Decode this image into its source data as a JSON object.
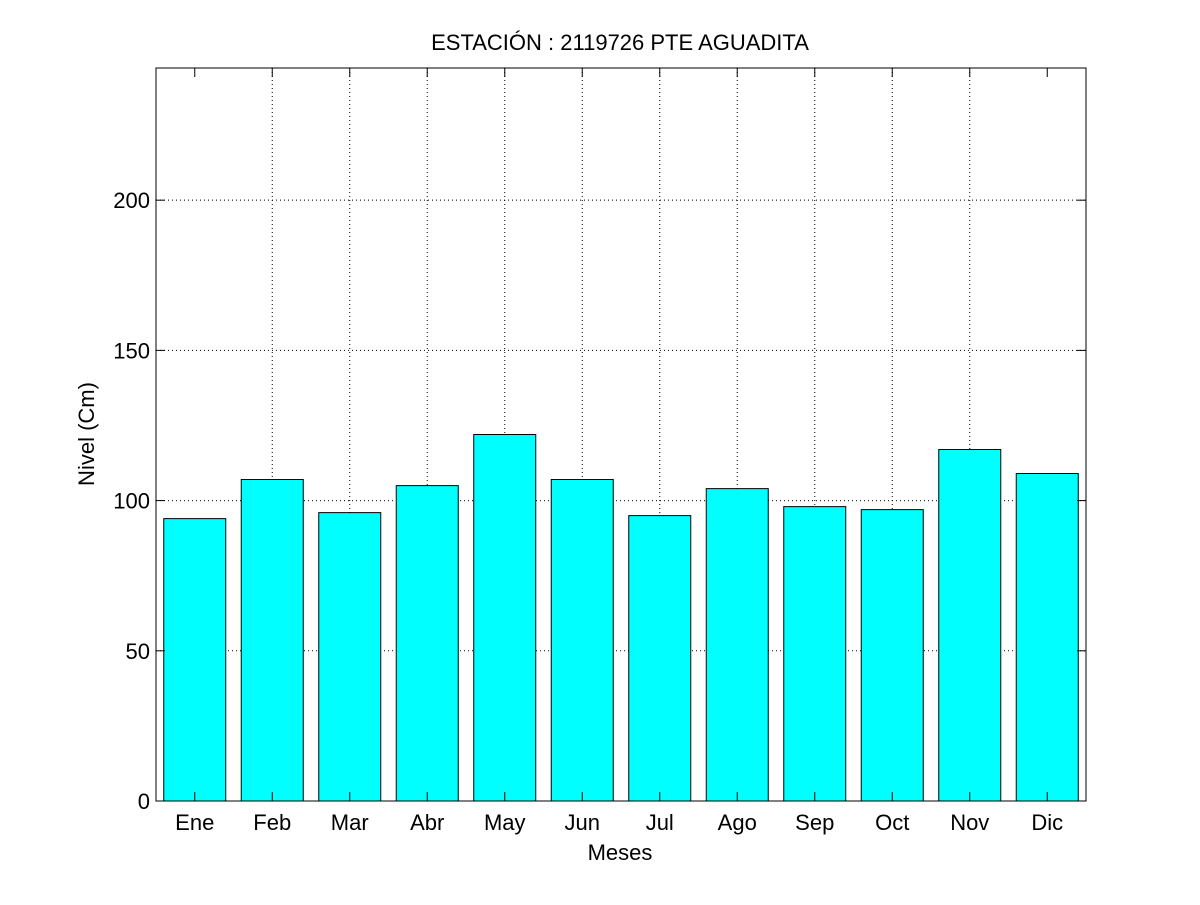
{
  "chart_data": {
    "type": "bar",
    "title": "ESTACIÓN :  2119726  PTE AGUADITA",
    "xlabel": "Meses",
    "ylabel": "Nivel (Cm)",
    "categories": [
      "Ene",
      "Feb",
      "Mar",
      "Abr",
      "May",
      "Jun",
      "Jul",
      "Ago",
      "Sep",
      "Oct",
      "Nov",
      "Dic"
    ],
    "values": [
      94,
      107,
      96,
      105,
      122,
      107,
      95,
      104,
      98,
      97,
      117,
      109
    ],
    "ylim": [
      0,
      244
    ],
    "yticks": [
      0,
      50,
      100,
      150,
      200
    ],
    "grid": true,
    "legend": "none",
    "colors": {
      "bar_fill": "#00ffff",
      "bar_edge": "#000000",
      "axis": "#000000",
      "grid": "#000000",
      "background": "#ffffff"
    }
  }
}
